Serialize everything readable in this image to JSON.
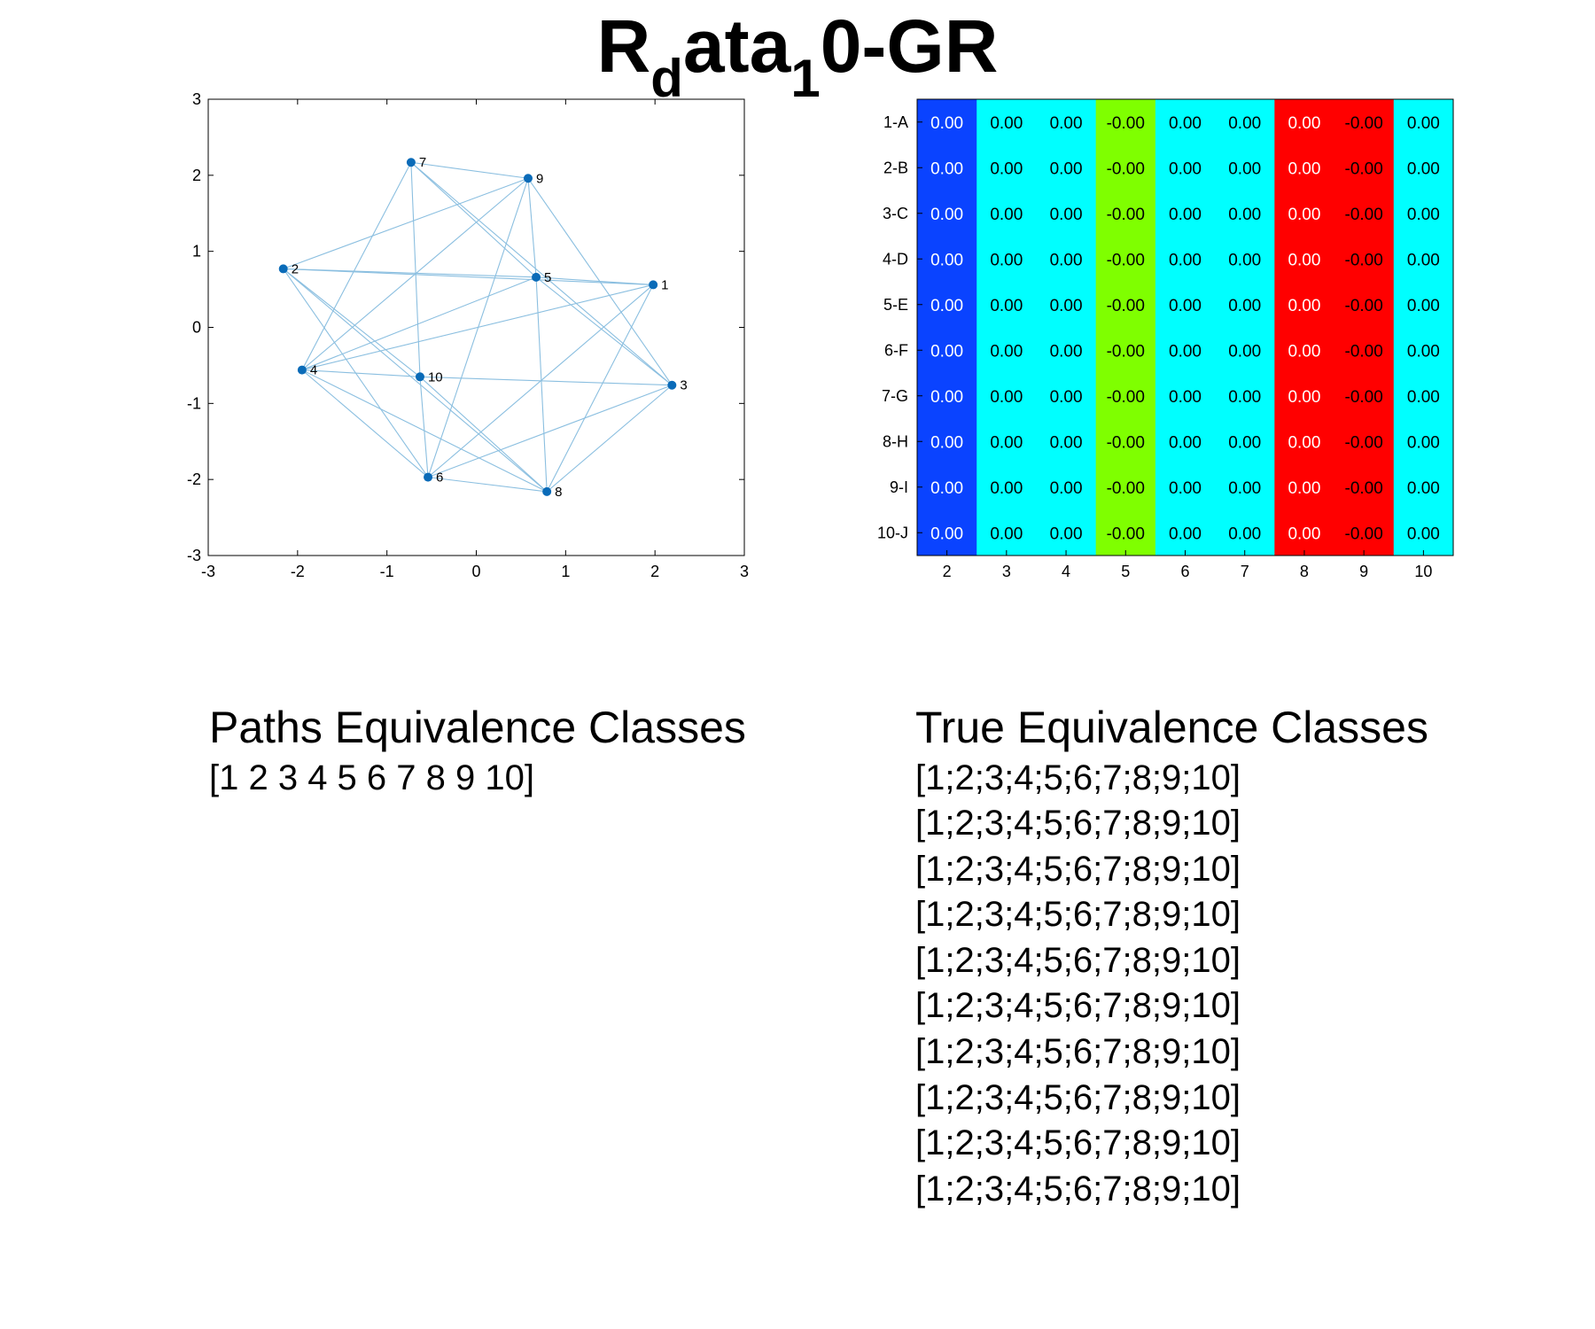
{
  "title": {
    "main": "R",
    "sub1": "d",
    "mid": "ata",
    "sub2": "1",
    "tail": "0-GR"
  },
  "chart_data": [
    {
      "type": "scatter",
      "title": "",
      "xlabel": "",
      "ylabel": "",
      "xlim": [
        -3,
        3
      ],
      "ylim": [
        -3,
        3
      ],
      "xticks": [
        "-3",
        "-2",
        "-1",
        "0",
        "1",
        "2",
        "3"
      ],
      "yticks": [
        "3",
        "2",
        "1",
        "0",
        "-1",
        "-2",
        "-3"
      ],
      "grid": false,
      "nodes": [
        {
          "label": "1",
          "x": 1.98,
          "y": 0.56
        },
        {
          "label": "2",
          "x": -2.16,
          "y": 0.77
        },
        {
          "label": "3",
          "x": 2.19,
          "y": -0.76
        },
        {
          "label": "4",
          "x": -1.95,
          "y": -0.56
        },
        {
          "label": "5",
          "x": 0.67,
          "y": 0.66
        },
        {
          "label": "6",
          "x": -0.54,
          "y": -1.97
        },
        {
          "label": "7",
          "x": -0.73,
          "y": 2.17
        },
        {
          "label": "8",
          "x": 0.79,
          "y": -2.16
        },
        {
          "label": "9",
          "x": 0.58,
          "y": 1.96
        },
        {
          "label": "10",
          "x": -0.63,
          "y": -0.65
        }
      ],
      "edges": [
        [
          2,
          1
        ],
        [
          2,
          5
        ],
        [
          2,
          9
        ],
        [
          2,
          6
        ],
        [
          2,
          8
        ],
        [
          2,
          10
        ],
        [
          7,
          9
        ],
        [
          7,
          4
        ],
        [
          7,
          10
        ],
        [
          7,
          5
        ],
        [
          7,
          3
        ],
        [
          9,
          4
        ],
        [
          9,
          5
        ],
        [
          9,
          3
        ],
        [
          9,
          6
        ],
        [
          5,
          1
        ],
        [
          5,
          8
        ],
        [
          5,
          4
        ],
        [
          4,
          10
        ],
        [
          4,
          1
        ],
        [
          4,
          6
        ],
        [
          4,
          8
        ],
        [
          10,
          3
        ],
        [
          10,
          8
        ],
        [
          10,
          6
        ],
        [
          1,
          6
        ],
        [
          1,
          8
        ],
        [
          3,
          6
        ],
        [
          3,
          8
        ],
        [
          6,
          8
        ],
        [
          3,
          5
        ]
      ]
    },
    {
      "type": "heatmap",
      "title": "",
      "row_labels": [
        "1-A",
        "2-B",
        "3-C",
        "4-D",
        "5-E",
        "6-F",
        "7-G",
        "8-H",
        "9-I",
        "10-J"
      ],
      "col_labels": [
        "2",
        "3",
        "4",
        "5",
        "6",
        "7",
        "8",
        "9",
        "10"
      ],
      "col_colors": [
        "#0a43ff",
        "#00ffff",
        "#00ffff",
        "#7fff00",
        "#00ffff",
        "#00ffff",
        "#ff0000",
        "#ff0000",
        "#00ffff"
      ],
      "col_text_colors": [
        "#ffffff",
        "#000000",
        "#000000",
        "#000000",
        "#000000",
        "#000000",
        "#ffffff",
        "#000000",
        "#000000"
      ],
      "values": [
        [
          "0.00",
          "0.00",
          "0.00",
          "-0.00",
          "0.00",
          "0.00",
          "0.00",
          "-0.00",
          "0.00"
        ],
        [
          "0.00",
          "0.00",
          "0.00",
          "-0.00",
          "0.00",
          "0.00",
          "0.00",
          "-0.00",
          "0.00"
        ],
        [
          "0.00",
          "0.00",
          "0.00",
          "-0.00",
          "0.00",
          "0.00",
          "0.00",
          "-0.00",
          "0.00"
        ],
        [
          "0.00",
          "0.00",
          "0.00",
          "-0.00",
          "0.00",
          "0.00",
          "0.00",
          "-0.00",
          "0.00"
        ],
        [
          "0.00",
          "0.00",
          "0.00",
          "-0.00",
          "0.00",
          "0.00",
          "0.00",
          "-0.00",
          "0.00"
        ],
        [
          "0.00",
          "0.00",
          "0.00",
          "-0.00",
          "0.00",
          "0.00",
          "0.00",
          "-0.00",
          "0.00"
        ],
        [
          "0.00",
          "0.00",
          "0.00",
          "-0.00",
          "0.00",
          "0.00",
          "0.00",
          "-0.00",
          "0.00"
        ],
        [
          "0.00",
          "0.00",
          "0.00",
          "-0.00",
          "0.00",
          "0.00",
          "0.00",
          "-0.00",
          "0.00"
        ],
        [
          "0.00",
          "0.00",
          "0.00",
          "-0.00",
          "0.00",
          "0.00",
          "0.00",
          "-0.00",
          "0.00"
        ],
        [
          "0.00",
          "0.00",
          "0.00",
          "-0.00",
          "0.00",
          "0.00",
          "0.00",
          "-0.00",
          "0.00"
        ]
      ]
    }
  ],
  "paths_classes": {
    "heading": "Paths Equivalence Classes",
    "lines": [
      "[1 2 3 4 5 6 7 8 9 10]"
    ]
  },
  "true_classes": {
    "heading": "True Equivalence Classes",
    "lines": [
      "[1;2;3;4;5;6;7;8;9;10]",
      "[1;2;3;4;5;6;7;8;9;10]",
      "[1;2;3;4;5;6;7;8;9;10]",
      "[1;2;3;4;5;6;7;8;9;10]",
      "[1;2;3;4;5;6;7;8;9;10]",
      "[1;2;3;4;5;6;7;8;9;10]",
      "[1;2;3;4;5;6;7;8;9;10]",
      "[1;2;3;4;5;6;7;8;9;10]",
      "[1;2;3;4;5;6;7;8;9;10]",
      "[1;2;3;4;5;6;7;8;9;10]"
    ]
  },
  "colors": {
    "node": "#0a6bb8",
    "edge": "#8bbfe0"
  }
}
